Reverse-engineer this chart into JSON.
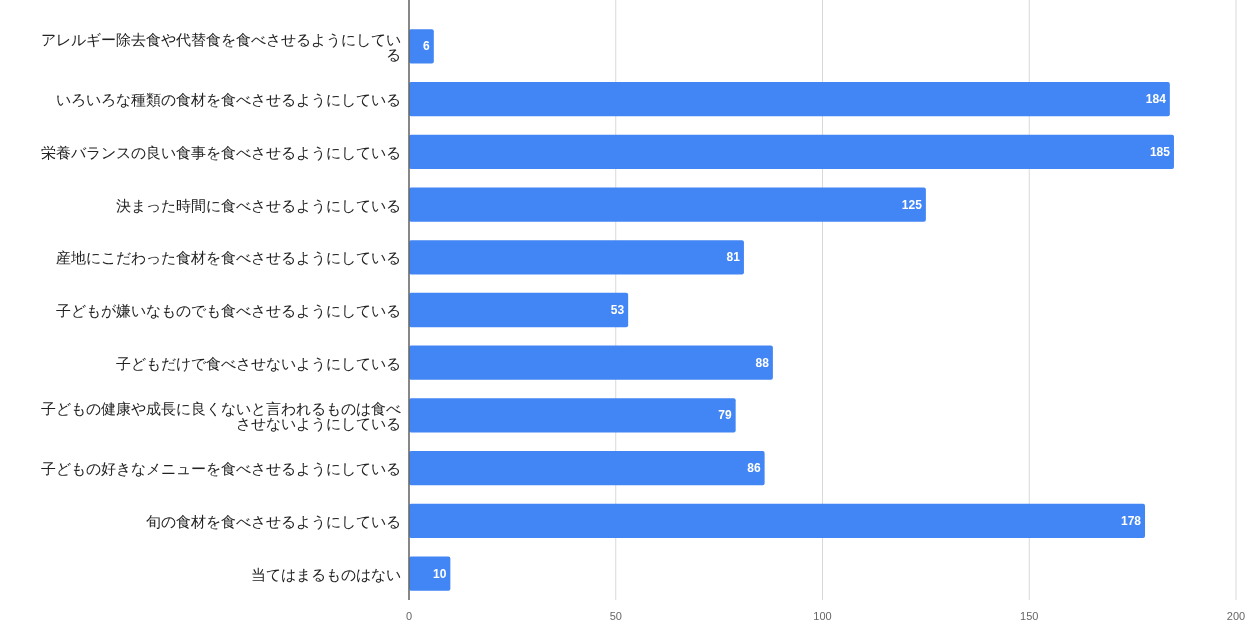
{
  "chart_data": {
    "type": "bar",
    "orientation": "horizontal",
    "categories": [
      "アレルギー除去食や代替食を食べさせるようにしている",
      "いろいろな種類の食材を食べさせるようにしている",
      "栄養バランスの良い食事を食べさせるようにしている",
      "決まった時間に食べさせるようにしている",
      "産地にこだわった食材を食べさせるようにしている",
      "子どもが嫌いなものでも食べさせるようにしている",
      "子どもだけで食べさせないようにしている",
      "子どもの健康や成長に良くないと言われるものは食べさせないようにしている",
      "子どもの好きなメニューを食べさせるようにしている",
      "旬の食材を食べさせるようにしている",
      "当てはまるものはない"
    ],
    "values": [
      6,
      184,
      185,
      125,
      81,
      53,
      88,
      79,
      86,
      178,
      10
    ],
    "color": "#4285f4",
    "xlim": [
      0,
      200
    ],
    "xticks": [
      0,
      50,
      100,
      150,
      200
    ],
    "grid": "x",
    "data_labels": true
  }
}
